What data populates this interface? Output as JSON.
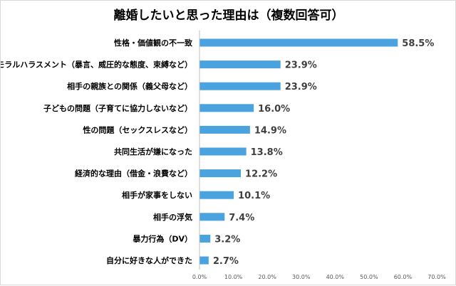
{
  "chart_data": {
    "type": "bar",
    "orientation": "horizontal",
    "title": "離婚したいと思った理由は（複数回答可）",
    "categories": [
      "性格・価値観の不一致",
      "モラルハラスメント（暴言、威圧的な態度、束縛など）",
      "相手の親族との関係（義父母など）",
      "子どもの問題（子育てに協力しないなど）",
      "性の問題（セックスレスなど）",
      "共同生活が嫌になった",
      "経済的な理由（借金・浪費など）",
      "相手が家事をしない",
      "相手の浮気",
      "暴力行為（DV）",
      "自分に好きな人ができた"
    ],
    "values": [
      58.5,
      23.9,
      23.9,
      16.0,
      14.9,
      13.8,
      12.2,
      10.1,
      7.4,
      3.2,
      2.7
    ],
    "value_labels": [
      "58.5%",
      "23.9%",
      "23.9%",
      "16.0%",
      "14.9%",
      "13.8%",
      "12.2%",
      "10.1%",
      "7.4%",
      "3.2%",
      "2.7%"
    ],
    "xlim": [
      0,
      70
    ],
    "x_ticks": [
      "0.0%",
      "10.0%",
      "20.0%",
      "30.0%",
      "40.0%",
      "50.0%",
      "60.0%",
      "70.0%"
    ],
    "x_tick_values": [
      0,
      10,
      20,
      30,
      40,
      50,
      60,
      70
    ],
    "grid": false,
    "legend": "none",
    "bar_color": "#4aa3df",
    "axis_color": "#bfbfbf"
  }
}
